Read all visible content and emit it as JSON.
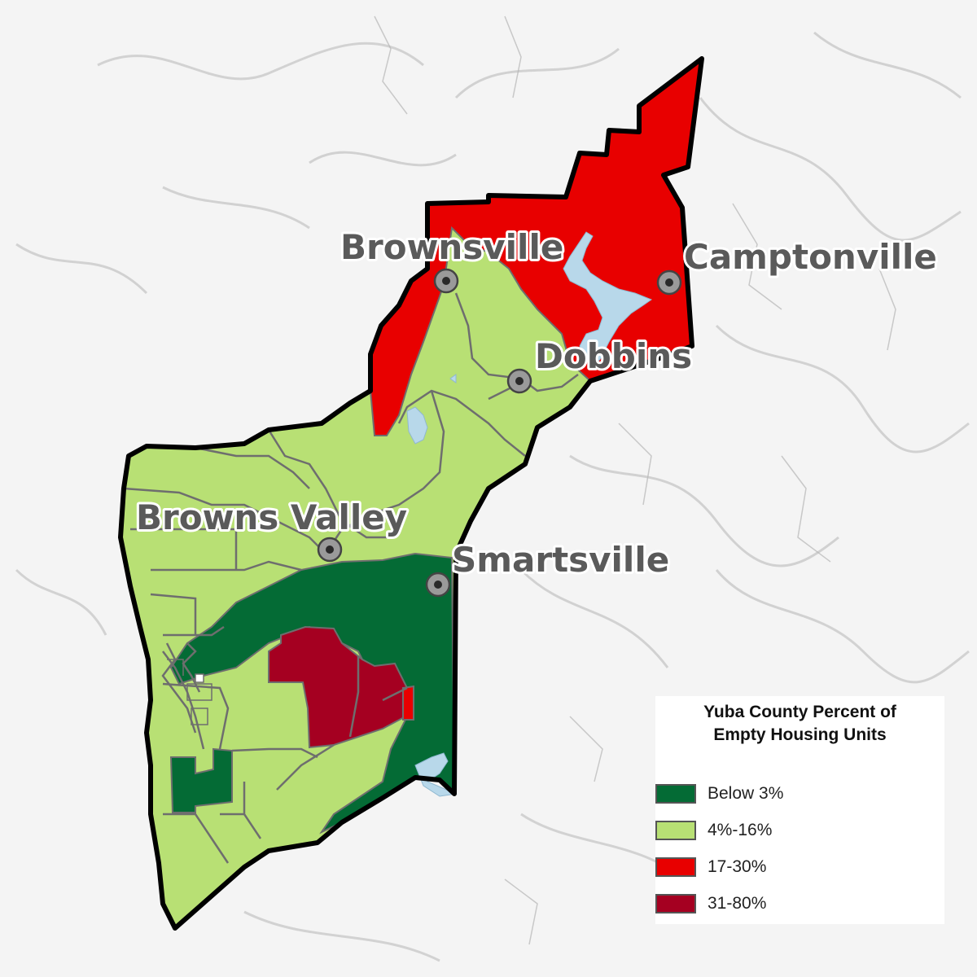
{
  "map": {
    "towns": [
      {
        "id": "brownsville",
        "name": "Brownsville"
      },
      {
        "id": "camptonville",
        "name": "Camptonville"
      },
      {
        "id": "dobbins",
        "name": "Dobbins"
      },
      {
        "id": "browns-valley",
        "name": "Browns Valley"
      },
      {
        "id": "smartsville",
        "name": "Smartsville"
      }
    ]
  },
  "legend": {
    "title_line1": "Yuba County Percent of",
    "title_line2": "Empty Housing Units",
    "items": [
      {
        "label": "Below 3%",
        "color": "#046b35"
      },
      {
        "label": "4%-16%",
        "color": "#b8e074"
      },
      {
        "label": "17-30%",
        "color": "#e80000"
      },
      {
        "label": "31-80%",
        "color": "#a50021"
      }
    ]
  },
  "colors": {
    "background": "#f4f4f4",
    "water": "#b8d8ea",
    "boundary": "#000000",
    "tract_lines": "#6e6e6e"
  }
}
